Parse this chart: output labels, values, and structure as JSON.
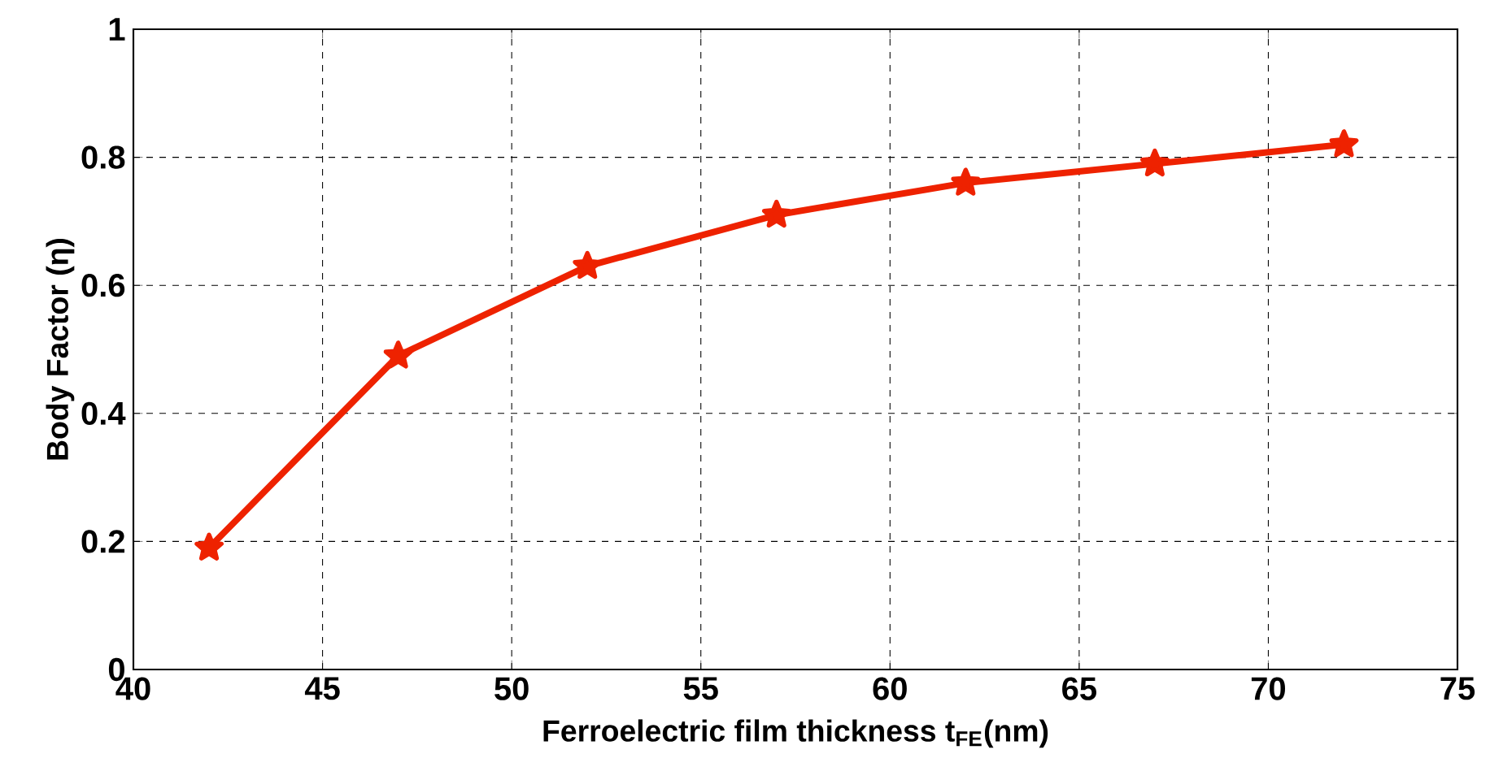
{
  "chart_data": {
    "type": "line",
    "xlabel": "Ferroelectric film thickness t$_{FE}$(nm)",
    "ylabel": "Body Factor (η)",
    "x": [
      42,
      47,
      52,
      57,
      62,
      67,
      72
    ],
    "series": [
      {
        "color": "#ee2200",
        "values": [
          0.19,
          0.49,
          0.63,
          0.71,
          0.76,
          0.79,
          0.82
        ]
      }
    ],
    "xlim": [
      40,
      75
    ],
    "xticks": [
      40,
      45,
      50,
      55,
      60,
      65,
      70,
      75
    ],
    "ylim": [
      0,
      1
    ],
    "yticks": [
      0,
      0.2,
      0.4,
      0.6,
      0.8,
      1
    ],
    "grid": true,
    "marker": "star",
    "line_style": "solid"
  }
}
